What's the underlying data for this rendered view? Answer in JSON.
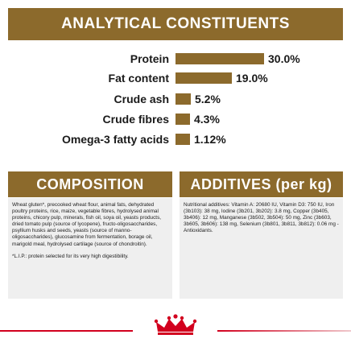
{
  "analytical": {
    "title": "ANALYTICAL CONSTITUENTS",
    "max_percent": 30.0,
    "rows": [
      {
        "label": "Protein",
        "value": "30.0%",
        "percent": 30.0
      },
      {
        "label": "Fat content",
        "value": "19.0%",
        "percent": 19.0
      },
      {
        "label": "Crude ash",
        "value": "5.2%",
        "percent": 5.2
      },
      {
        "label": "Crude fibres",
        "value": "4.3%",
        "percent": 4.3
      },
      {
        "label": "Omega-3 fatty acids",
        "value": "1.12%",
        "percent": 1.12
      }
    ]
  },
  "composition": {
    "title": "COMPOSITION",
    "text": "Wheat gluten*, precooked wheat flour, animal fats, dehydrated poultry proteins, rice, maize, vegetable fibres, hydrolysed animal proteins, chicory pulp, minerals, fish oil, soya oil, yeasts products, dried tomato pulp (source of lycopene), fructo-oligosaccharides, psyllium husks and seeds, yeasts (source of manno-oligosaccharides), glucosamine from fermentation, borage oil, marigold meal, hydrolysed cartilage (source of chondroitin).",
    "footnote": "*L.I.P.: protein selected for its very high digestibility."
  },
  "additives": {
    "title": "ADDITIVES (per kg)",
    "text": "Nutritional additives: Vitamin A: 20680 IU, Vitamin D3: 750 IU, Iron (3b103): 38 mg, Iodine (3b201, 3b202): 3.8 mg, Copper (3b405, 3b406): 12 mg, Manganese (3b502, 3b504): 50 mg, Zinc (3b603, 3b605, 3b606): 138 mg, Selenium (3b801, 3b811, 3b812): 0.06 mg - Antioxidants."
  },
  "colors": {
    "brand_brown": "#8c6a2c",
    "panel_gray": "#efefef",
    "royal_red": "#d2001e"
  }
}
